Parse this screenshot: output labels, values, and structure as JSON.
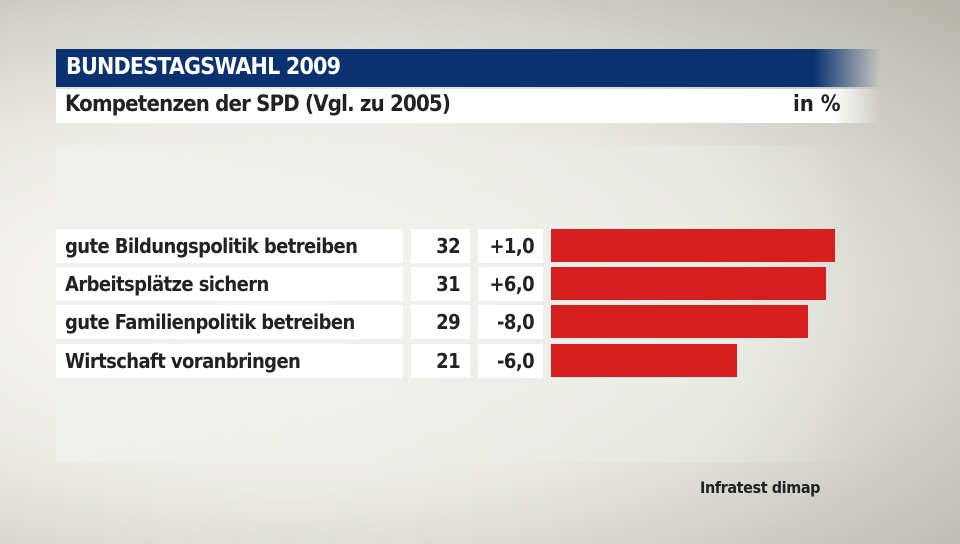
{
  "header": {
    "title": "BUNDESTAGSWAHL 2009"
  },
  "chart_data": {
    "type": "bar",
    "title": "Kompetenzen der SPD (Vgl. zu 2005)",
    "unit": "in %",
    "categories": [
      "gute Bildungspolitik betreiben",
      "Arbeitsplätze sichern",
      "gute Familienpolitik betreiben",
      "Wirtschaft voranbringen"
    ],
    "values": [
      32,
      31,
      29,
      21
    ],
    "changes": [
      "+1,0",
      "+6,0",
      "-8,0",
      "-6,0"
    ],
    "bar_color": "#d71f1f",
    "xlim": [
      0,
      32
    ]
  },
  "source": "Infratest dimap"
}
